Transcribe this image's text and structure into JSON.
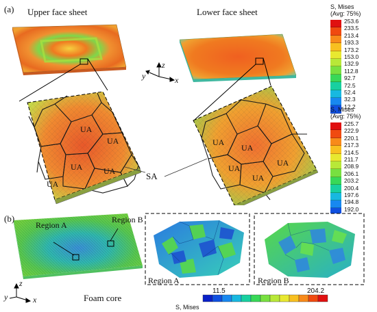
{
  "panel_a": {
    "label": "(a)",
    "upper_face_label": "Upper face sheet",
    "lower_face_label": "Lower face sheet",
    "ua_labels": [
      "UA",
      "UA",
      "UA",
      "UA",
      "UA",
      "UA",
      "UA",
      "UA",
      "UA",
      "UA"
    ],
    "sa_label": "SA",
    "axes": {
      "x": "x",
      "y": "y",
      "z": "z"
    }
  },
  "legend_top": {
    "title_line1": "S, Mises",
    "title_line2": "(Avg: 75%)",
    "values": [
      "253.6",
      "233.5",
      "213.4",
      "193.3",
      "173.2",
      "153.0",
      "132.9",
      "112.8",
      "92.7",
      "72.5",
      "52.4",
      "32.3",
      "12.2"
    ],
    "colors": [
      "#e01010",
      "#f04a10",
      "#f88a1a",
      "#f8c020",
      "#e8e830",
      "#b8e838",
      "#78e040",
      "#38d858",
      "#18d0a0",
      "#18b8e0",
      "#1888f0",
      "#1050e0",
      "#0a20c8"
    ]
  },
  "legend_bottom": {
    "title_line1": "S, Mises",
    "title_line2": "(Avg: 75%)",
    "values": [
      "225.7",
      "222.9",
      "220.1",
      "217.3",
      "214.5",
      "211.7",
      "208.9",
      "206.1",
      "203.2",
      "200.4",
      "197.6",
      "194.8",
      "192.0"
    ],
    "colors": [
      "#e01010",
      "#f04a10",
      "#f88a1a",
      "#f8c020",
      "#e8e830",
      "#b8e838",
      "#78e040",
      "#38d858",
      "#18d0a0",
      "#18b8e0",
      "#1888f0",
      "#1050e0",
      "#0a20c8"
    ]
  },
  "panel_b": {
    "label": "(b)",
    "region_a": "Region A",
    "region_b": "Region B",
    "foam_core_label": "Foam core",
    "axes": {
      "x": "x",
      "y": "y",
      "z": "z"
    },
    "bar": {
      "min": "11.5",
      "max": "204.2",
      "title": "S, Mises"
    }
  }
}
